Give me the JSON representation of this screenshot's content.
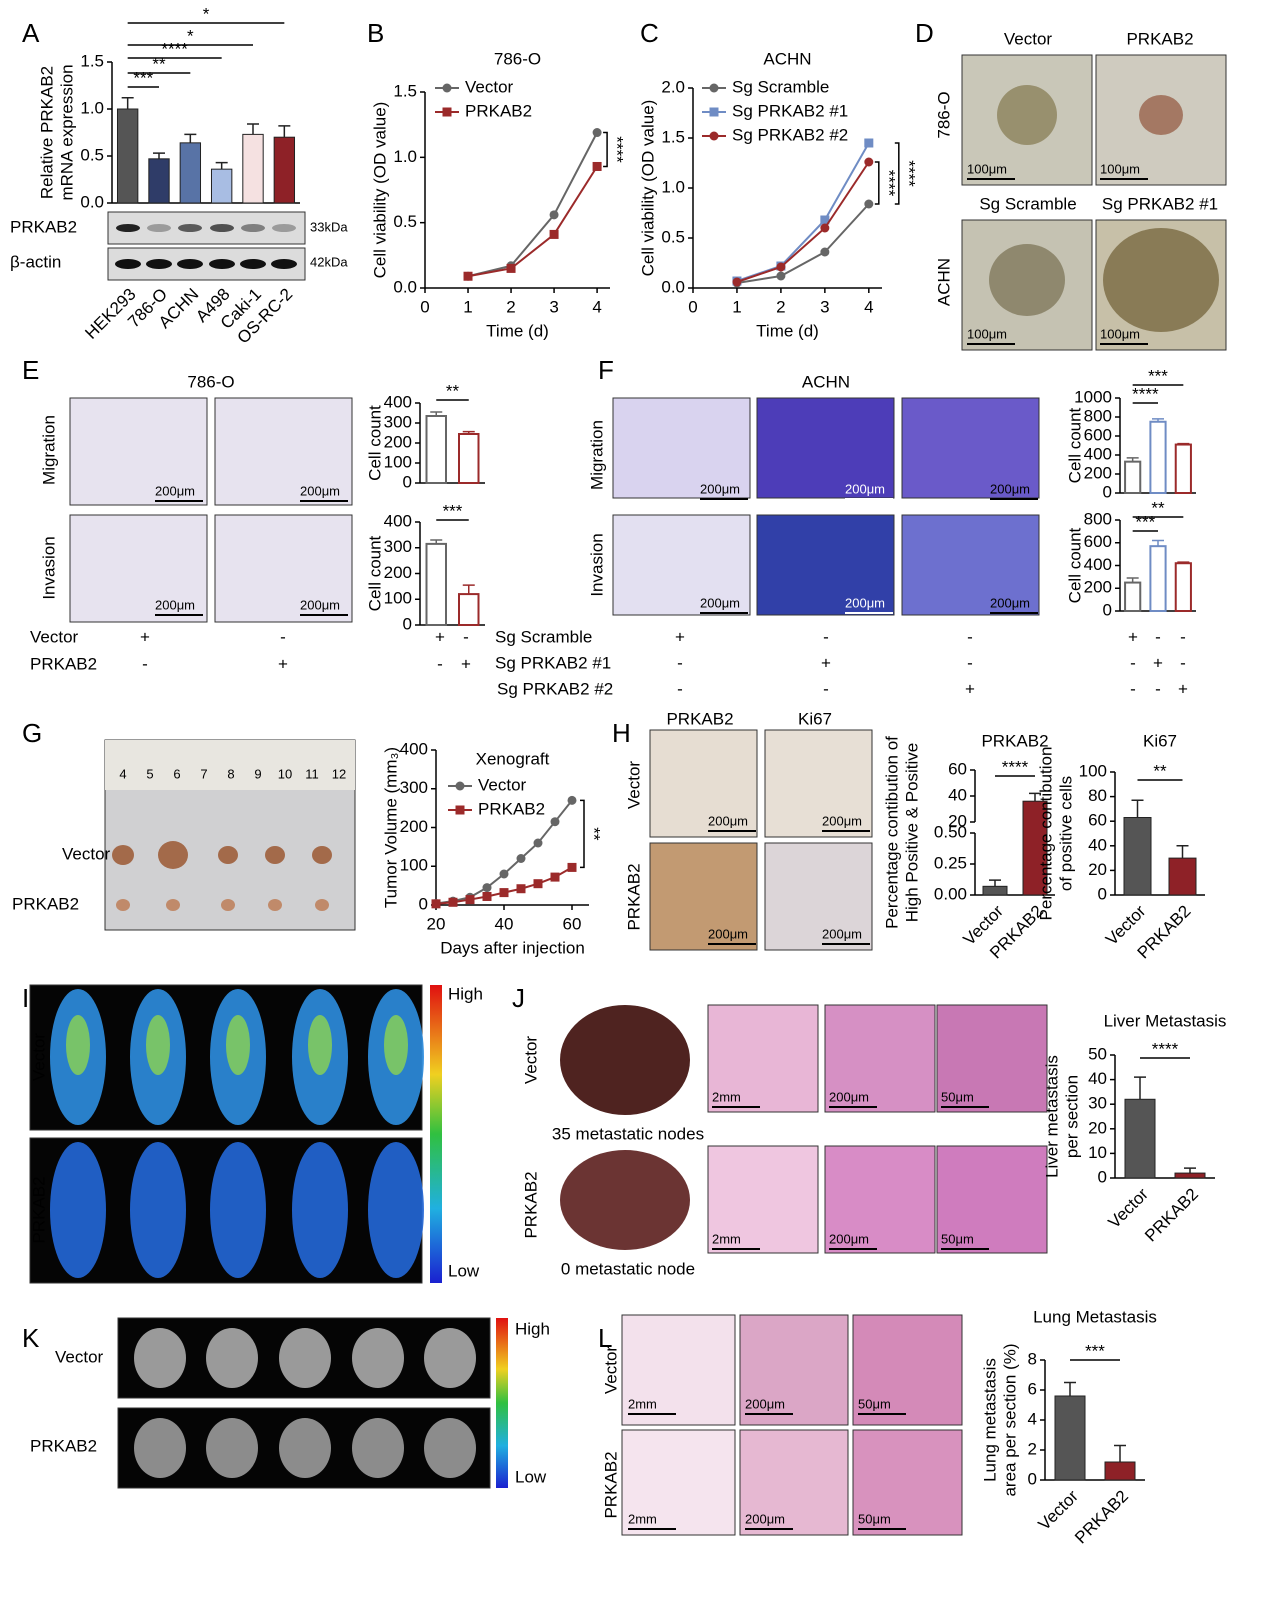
{
  "panel_labels": [
    "A",
    "B",
    "C",
    "D",
    "E",
    "F",
    "G",
    "H",
    "I",
    "J",
    "K",
    "L"
  ],
  "blot": {
    "bands": [
      "PRKAB2",
      "β-actin"
    ],
    "sizes": [
      "33kDa",
      "42kDa"
    ]
  },
  "spheroids": {
    "top": [
      "Vector",
      "PRKAB2"
    ],
    "bottom": [
      "Sg Scramble",
      "Sg PRKAB2 #1"
    ],
    "rows": [
      "786-O",
      "ACHN"
    ],
    "scale": "100μm"
  },
  "transwell_786O": {
    "title": "786-O",
    "rows": [
      "Migration",
      "Invasion"
    ],
    "scale": "200μm",
    "conditions": [
      {
        "label": "Vector",
        "marks": [
          "+",
          "-",
          "+",
          "-"
        ]
      },
      {
        "label": "PRKAB2",
        "marks": [
          "-",
          "+",
          "-",
          "+"
        ]
      }
    ]
  },
  "transwell_ACHN": {
    "title": "ACHN",
    "rows": [
      "Migration",
      "Invasion"
    ],
    "scale": "200μm",
    "conditions": [
      {
        "label": "Sg Scramble",
        "marks": [
          "+",
          "-",
          "-",
          "+",
          "-",
          "-"
        ]
      },
      {
        "label": "Sg PRKAB2 #1",
        "marks": [
          "-",
          "+",
          "-",
          "-",
          "+",
          "-"
        ]
      },
      {
        "label": "Sg PRKAB2 #2",
        "marks": [
          "-",
          "-",
          "+",
          "-",
          "-",
          "+"
        ]
      }
    ]
  },
  "xenograft": {
    "ruler": [
      "4",
      "5",
      "6",
      "7",
      "8",
      "9",
      "10",
      "11",
      "12"
    ],
    "rows": [
      "Vector",
      "PRKAB2"
    ]
  },
  "ihc": {
    "columns": [
      "PRKAB2",
      "Ki67"
    ],
    "rows": [
      "Vector",
      "PRKAB2"
    ],
    "scale": "200μm"
  },
  "bioluminescence_body": {
    "rows": [
      "Vector",
      "PRKAB2"
    ],
    "high": "High",
    "low": "Low"
  },
  "liver": {
    "rows": [
      "Vector",
      "PRKAB2"
    ],
    "captions": [
      "35 metastatic nodes",
      "0 metastatic node"
    ],
    "scales": [
      "2mm",
      "200μm",
      "50μm"
    ]
  },
  "bioluminescence_lung": {
    "rows": [
      "Vector",
      "PRKAB2"
    ],
    "high": "High",
    "low": "Low"
  },
  "lung": {
    "rows": [
      "Vector",
      "PRKAB2"
    ],
    "scales": [
      "2mm",
      "200μm",
      "50μm"
    ]
  },
  "chart_data": [
    {
      "type": "bar",
      "categories": [
        "HEK293",
        "786-O",
        "ACHN",
        "A498",
        "Caki-1",
        "OS-RC-2"
      ],
      "values": [
        1.0,
        0.47,
        0.64,
        0.36,
        0.73,
        0.7
      ],
      "errors": [
        0.12,
        0.06,
        0.09,
        0.07,
        0.11,
        0.12
      ],
      "colors": [
        "#555555",
        "#2f3c68",
        "#5873a6",
        "#a8bde3",
        "#f5e1e1",
        "#8e2127"
      ],
      "ylim": [
        0,
        1.5
      ],
      "yticks": [
        {
          "value": 0,
          "label": "0.0"
        },
        0.5,
        {
          "value": 1,
          "label": "1.0"
        },
        1.5
      ],
      "ylabel": [
        "Relative PRKAB2",
        "mRNA expression"
      ],
      "annotations": [
        "*",
        "*",
        "****",
        "**",
        "***"
      ]
    },
    {
      "type": "line",
      "title": "786-O",
      "x": [
        1,
        2,
        3,
        4
      ],
      "xlim": [
        0,
        4.3
      ],
      "xticks": [
        0,
        1,
        2,
        3,
        4
      ],
      "xlabel": "Time (d)",
      "ylabel": [
        "Cell viability (OD value)"
      ],
      "ylim": [
        0,
        1.5
      ],
      "yticks": [
        {
          "value": 0,
          "label": "0.0"
        },
        0.5,
        {
          "value": 1,
          "label": "1.0"
        },
        1.5
      ],
      "series": [
        {
          "name": "Vector",
          "color": "#666666",
          "marker": "circle",
          "values": [
            0.09,
            0.17,
            0.56,
            1.19
          ]
        },
        {
          "name": "PRKAB2",
          "color": "#9b2a2a",
          "marker": "square",
          "values": [
            0.09,
            0.15,
            0.41,
            0.93
          ]
        }
      ],
      "annotations": [
        "****"
      ]
    },
    {
      "type": "line",
      "title": "ACHN",
      "x": [
        1,
        2,
        3,
        4
      ],
      "xlim": [
        0,
        4.3
      ],
      "xticks": [
        0,
        1,
        2,
        3,
        4
      ],
      "xlabel": "Time (d)",
      "ylabel": [
        "Cell viability (OD value)"
      ],
      "ylim": [
        0,
        2
      ],
      "yticks": [
        {
          "value": 0,
          "label": "0.0"
        },
        0.5,
        {
          "value": 1,
          "label": "1.0"
        },
        1.5,
        {
          "value": 2,
          "label": "2.0"
        }
      ],
      "series": [
        {
          "name": "Sg Scramble",
          "color": "#666666",
          "marker": "circle",
          "values": [
            0.05,
            0.12,
            0.36,
            0.84
          ]
        },
        {
          "name": "Sg PRKAB2 #1",
          "color": "#6f8cc4",
          "marker": "square",
          "values": [
            0.07,
            0.22,
            0.68,
            1.45
          ]
        },
        {
          "name": "Sg PRKAB2 #2",
          "color": "#9b2a2a",
          "marker": "circle",
          "values": [
            0.06,
            0.21,
            0.6,
            1.26
          ]
        }
      ],
      "annotations": [
        "****",
        "****"
      ]
    },
    {
      "type": "bar",
      "style": "outline",
      "categories": [
        null,
        null
      ],
      "values": [
        335,
        245
      ],
      "errors": [
        20,
        12
      ],
      "colors": [
        "#666666",
        "#9b2a2a"
      ],
      "ylim": [
        0,
        400
      ],
      "yticks": [
        0,
        100,
        200,
        300,
        400
      ],
      "ylabel": [
        "Cell count"
      ],
      "annotations": [
        "**"
      ]
    },
    {
      "type": "bar",
      "style": "outline",
      "categories": [
        null,
        null
      ],
      "values": [
        315,
        120
      ],
      "errors": [
        15,
        35
      ],
      "colors": [
        "#666666",
        "#9b2a2a"
      ],
      "ylim": [
        0,
        400
      ],
      "yticks": [
        0,
        100,
        200,
        300,
        400
      ],
      "ylabel": [
        "Cell count"
      ],
      "annotations": [
        "***"
      ]
    },
    {
      "type": "bar",
      "style": "outline",
      "categories": [
        null,
        null,
        null
      ],
      "values": [
        330,
        750,
        510
      ],
      "errors": [
        40,
        30,
        10
      ],
      "colors": [
        "#666666",
        "#6f8cc4",
        "#9b2a2a"
      ],
      "ylim": [
        0,
        1000
      ],
      "yticks": [
        0,
        200,
        400,
        600,
        800,
        1000
      ],
      "ylabel": [
        "Cell count"
      ],
      "annotations": [
        "***",
        "****"
      ]
    },
    {
      "type": "bar",
      "style": "outline",
      "categories": [
        null,
        null,
        null
      ],
      "values": [
        250,
        570,
        420
      ],
      "errors": [
        40,
        50,
        10
      ],
      "colors": [
        "#666666",
        "#6f8cc4",
        "#9b2a2a"
      ],
      "ylim": [
        0,
        800
      ],
      "yticks": [
        0,
        200,
        400,
        600,
        800
      ],
      "ylabel": [
        "Cell count"
      ],
      "annotations": [
        "**",
        "***"
      ]
    },
    {
      "type": "line",
      "title": "Xenograft",
      "x": [
        20,
        25,
        30,
        35,
        40,
        45,
        50,
        55,
        60
      ],
      "xlim": [
        20,
        65
      ],
      "xticks": [
        20,
        40,
        60
      ],
      "xlabel": "Days after injection",
      "ylabel": [
        "Tumor Volume (mm₃)"
      ],
      "ylim": [
        0,
        400
      ],
      "yticks": [
        0,
        100,
        200,
        300,
        400
      ],
      "series": [
        {
          "name": "Vector",
          "color": "#666666",
          "marker": "circle",
          "values": [
            4,
            10,
            20,
            45,
            80,
            120,
            160,
            215,
            270
          ]
        },
        {
          "name": "PRKAB2",
          "color": "#9b2a2a",
          "marker": "square",
          "values": [
            3,
            7,
            14,
            22,
            32,
            42,
            55,
            72,
            97
          ]
        }
      ],
      "annotations": [
        "**"
      ]
    },
    {
      "type": "bar",
      "title": "PRKAB2",
      "categories": [
        "Vector",
        "PRKAB2"
      ],
      "values": [
        0.07,
        36
      ],
      "errors": [
        0.05,
        6
      ],
      "colors": [
        "#555555",
        "#8e2127"
      ],
      "ysegments": [
        [
          0,
          0.5
        ],
        [
          20,
          60
        ]
      ],
      "yticks": [
        {
          "value": 0,
          "label": "0.00"
        },
        {
          "value": 0.25,
          "label": "0.25"
        },
        {
          "value": 0.5,
          "label": "0.50"
        },
        20,
        40,
        60
      ],
      "ylabel": [
        "Percentage contibution of",
        "High Positive & Positive"
      ],
      "annotations": [
        "****"
      ]
    },
    {
      "type": "bar",
      "title": "Ki67",
      "categories": [
        "Vector",
        "PRKAB2"
      ],
      "values": [
        63,
        30
      ],
      "errors": [
        14,
        10
      ],
      "colors": [
        "#555555",
        "#8e2127"
      ],
      "ylim": [
        0,
        100
      ],
      "yticks": [
        0,
        20,
        40,
        60,
        80,
        100
      ],
      "ylabel": [
        "Percentage contibution",
        "of positive cells"
      ],
      "annotations": [
        "**"
      ]
    },
    {
      "type": "bar",
      "title": "Liver Metastasis",
      "categories": [
        "Vector",
        "PRKAB2"
      ],
      "values": [
        32,
        2
      ],
      "errors": [
        9,
        2
      ],
      "colors": [
        "#555555",
        "#8e2127"
      ],
      "ylim": [
        0,
        50
      ],
      "yticks": [
        0,
        10,
        20,
        30,
        40,
        50
      ],
      "ylabel": [
        "Liver metastasis",
        "per section"
      ],
      "annotations": [
        "****"
      ]
    },
    {
      "type": "bar",
      "title": "Lung Metastasis",
      "categories": [
        "Vector",
        "PRKAB2"
      ],
      "values": [
        5.6,
        1.2
      ],
      "errors": [
        0.9,
        1.1
      ],
      "colors": [
        "#555555",
        "#8e2127"
      ],
      "ylim": [
        0,
        8
      ],
      "yticks": [
        0,
        2,
        4,
        6,
        8
      ],
      "ylabel": [
        "Lung metastasis",
        "area per section (%)"
      ],
      "annotations": [
        "***"
      ]
    }
  ]
}
